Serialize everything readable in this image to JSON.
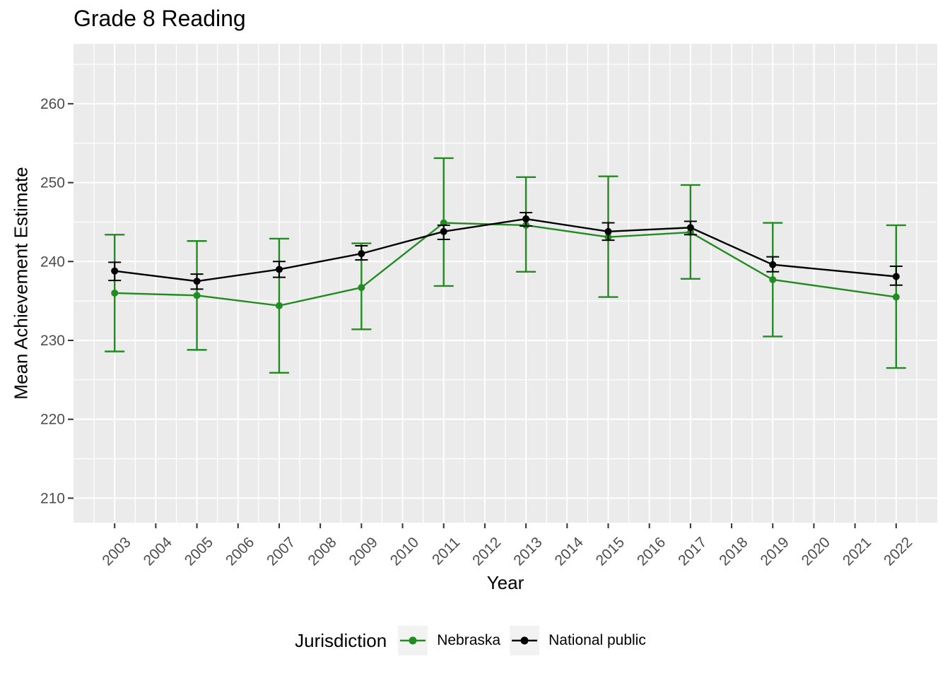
{
  "chart_data": {
    "type": "line",
    "title": "Grade 8 Reading",
    "xlabel": "Year",
    "ylabel": "Mean Achievement Estimate",
    "x_ticks": [
      2003,
      2004,
      2005,
      2006,
      2007,
      2008,
      2009,
      2010,
      2011,
      2012,
      2013,
      2014,
      2015,
      2016,
      2017,
      2018,
      2019,
      2020,
      2021,
      2022
    ],
    "y_ticks": [
      210,
      220,
      230,
      240,
      250,
      260
    ],
    "x_domain": [
      2002,
      2023
    ],
    "y_domain": [
      206.9,
      267.6
    ],
    "grid": true,
    "legend": {
      "title": "Jurisdiction",
      "position": "bottom",
      "key_background": "#F2F2F2"
    },
    "colors": {
      "panel_background": "#EBEBEB",
      "gridline": "#FFFFFF",
      "tick_mark": "#333333",
      "tick_label": "#4D4D4D",
      "nebraska": "#228B22",
      "national_public": "#000000"
    },
    "series": [
      {
        "name": "Nebraska",
        "color": "#228B22",
        "x": [
          2003,
          2005,
          2007,
          2009,
          2011,
          2013,
          2015,
          2017,
          2019,
          2022
        ],
        "values": [
          236.0,
          235.7,
          234.4,
          236.7,
          244.9,
          244.6,
          243.1,
          243.7,
          237.7,
          235.5
        ],
        "ci_low": [
          228.6,
          228.8,
          225.9,
          231.4,
          236.9,
          238.7,
          235.5,
          237.8,
          230.5,
          226.5
        ],
        "ci_high": [
          243.4,
          242.6,
          242.9,
          242.3,
          253.1,
          250.7,
          250.8,
          249.7,
          244.9,
          244.6
        ]
      },
      {
        "name": "National public",
        "color": "#000000",
        "x": [
          2003,
          2005,
          2007,
          2009,
          2011,
          2013,
          2015,
          2017,
          2019,
          2022
        ],
        "values": [
          238.8,
          237.5,
          239.0,
          241.0,
          243.8,
          245.4,
          243.8,
          244.3,
          239.6,
          238.1
        ],
        "ci_low": [
          237.6,
          236.5,
          238.0,
          240.2,
          242.8,
          244.5,
          242.7,
          243.4,
          238.7,
          237.0
        ],
        "ci_high": [
          239.9,
          238.4,
          240.0,
          242.0,
          244.6,
          246.2,
          244.9,
          245.1,
          240.6,
          239.4
        ]
      }
    ]
  }
}
